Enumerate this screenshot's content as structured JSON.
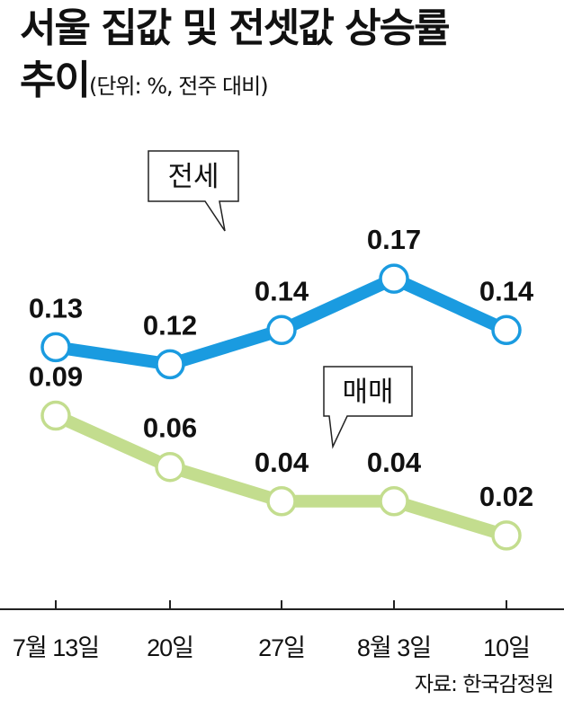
{
  "title_line1": "서울 집값 및 전셋값 상승률",
  "title_line2": "추이",
  "unit": "(단위: %, 전주 대비)",
  "source": "자료: 한국감정원",
  "colors": {
    "jeonse": "#1a9be0",
    "maemae": "#c3dd8e",
    "axis": "#222222"
  },
  "chart_data": {
    "type": "line",
    "title": "서울 집값 및 전셋값 상승률 추이",
    "ylabel": "(단위: %, 전주 대비)",
    "categories": [
      "7월 13일",
      "20일",
      "27일",
      "8월 3일",
      "10일"
    ],
    "series": [
      {
        "name": "전세",
        "values": [
          0.13,
          0.12,
          0.14,
          0.17,
          0.14
        ],
        "labels": [
          "0.13",
          "0.12",
          "0.14",
          "0.17",
          "0.14"
        ]
      },
      {
        "name": "매매",
        "values": [
          0.09,
          0.06,
          0.04,
          0.04,
          0.02
        ],
        "labels": [
          "0.09",
          "0.06",
          "0.04",
          "0.04",
          "0.02"
        ]
      }
    ]
  }
}
